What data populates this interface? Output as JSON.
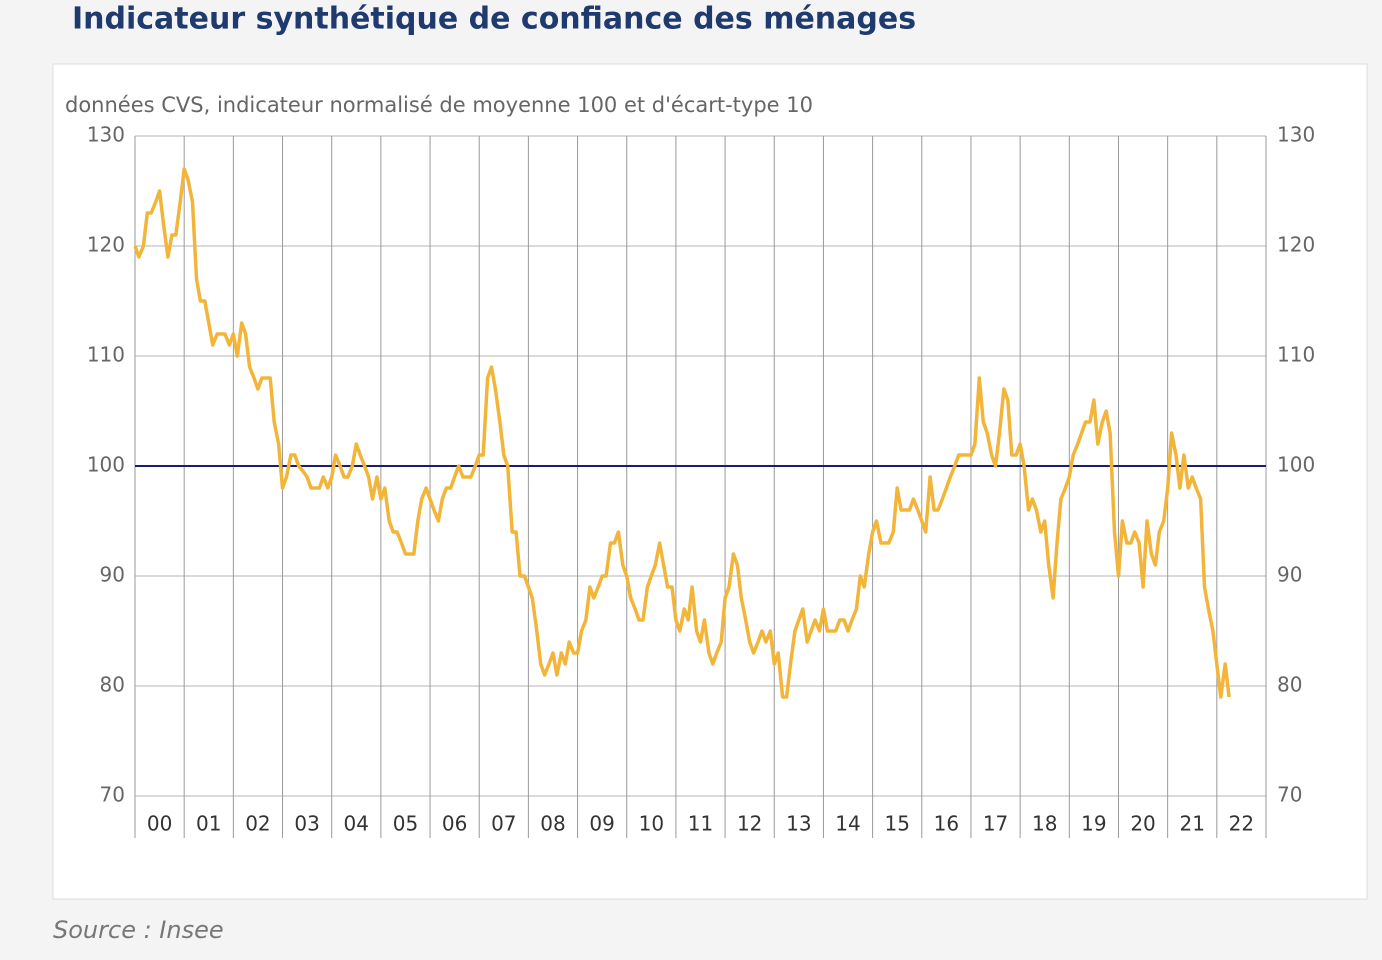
{
  "chart_data": {
    "type": "line",
    "title": "Indicateur synthétique de confiance des ménages",
    "subtitle": "données CVS, indicateur normalisé de moyenne 100 et d'écart-type 10",
    "source": "Source : Insee",
    "x": [
      2000,
      2000.08,
      2000.17,
      2000.25,
      2000.33,
      2000.42,
      2000.5,
      2000.58,
      2000.67,
      2000.75,
      2000.83,
      2000.92,
      2001,
      2001.08,
      2001.17,
      2001.25,
      2001.33,
      2001.42,
      2001.5,
      2001.58,
      2001.67,
      2001.75,
      2001.83,
      2001.92,
      2002,
      2002.08,
      2002.17,
      2002.25,
      2002.33,
      2002.42,
      2002.5,
      2002.58,
      2002.67,
      2002.75,
      2002.83,
      2002.92,
      2003,
      2003.08,
      2003.17,
      2003.25,
      2003.33,
      2003.42,
      2003.5,
      2003.58,
      2003.67,
      2003.75,
      2003.83,
      2003.92,
      2004,
      2004.08,
      2004.17,
      2004.25,
      2004.33,
      2004.42,
      2004.5,
      2004.58,
      2004.67,
      2004.75,
      2004.83,
      2004.92,
      2005,
      2005.08,
      2005.17,
      2005.25,
      2005.33,
      2005.42,
      2005.5,
      2005.58,
      2005.67,
      2005.75,
      2005.83,
      2005.92,
      2006,
      2006.08,
      2006.17,
      2006.25,
      2006.33,
      2006.42,
      2006.5,
      2006.58,
      2006.67,
      2006.75,
      2006.83,
      2006.92,
      2007,
      2007.08,
      2007.17,
      2007.25,
      2007.33,
      2007.42,
      2007.5,
      2007.58,
      2007.67,
      2007.75,
      2007.83,
      2007.92,
      2008,
      2008.08,
      2008.17,
      2008.25,
      2008.33,
      2008.42,
      2008.5,
      2008.58,
      2008.67,
      2008.75,
      2008.83,
      2008.92,
      2009,
      2009.08,
      2009.17,
      2009.25,
      2009.33,
      2009.42,
      2009.5,
      2009.58,
      2009.67,
      2009.75,
      2009.83,
      2009.92,
      2010,
      2010.08,
      2010.17,
      2010.25,
      2010.33,
      2010.42,
      2010.5,
      2010.58,
      2010.67,
      2010.75,
      2010.83,
      2010.92,
      2011,
      2011.08,
      2011.17,
      2011.25,
      2011.33,
      2011.42,
      2011.5,
      2011.58,
      2011.67,
      2011.75,
      2011.83,
      2011.92,
      2012,
      2012.08,
      2012.17,
      2012.25,
      2012.33,
      2012.42,
      2012.5,
      2012.58,
      2012.67,
      2012.75,
      2012.83,
      2012.92,
      2013,
      2013.08,
      2013.17,
      2013.25,
      2013.33,
      2013.42,
      2013.5,
      2013.58,
      2013.67,
      2013.75,
      2013.83,
      2013.92,
      2014,
      2014.08,
      2014.17,
      2014.25,
      2014.33,
      2014.42,
      2014.5,
      2014.58,
      2014.67,
      2014.75,
      2014.83,
      2014.92,
      2015,
      2015.08,
      2015.17,
      2015.25,
      2015.33,
      2015.42,
      2015.5,
      2015.58,
      2015.67,
      2015.75,
      2015.83,
      2015.92,
      2016,
      2016.08,
      2016.17,
      2016.25,
      2016.33,
      2016.42,
      2016.5,
      2016.58,
      2016.67,
      2016.75,
      2016.83,
      2016.92,
      2017,
      2017.08,
      2017.17,
      2017.25,
      2017.33,
      2017.42,
      2017.5,
      2017.58,
      2017.67,
      2017.75,
      2017.83,
      2017.92,
      2018,
      2018.08,
      2018.17,
      2018.25,
      2018.33,
      2018.42,
      2018.5,
      2018.58,
      2018.67,
      2018.75,
      2018.83,
      2018.92,
      2019,
      2019.08,
      2019.17,
      2019.25,
      2019.33,
      2019.42,
      2019.5,
      2019.58,
      2019.67,
      2019.75,
      2019.83,
      2019.92,
      2020,
      2020.08,
      2020.17,
      2020.25,
      2020.33,
      2020.42,
      2020.5,
      2020.58,
      2020.67,
      2020.75,
      2020.83,
      2020.92,
      2021,
      2021.08,
      2021.17,
      2021.25,
      2021.33,
      2021.42,
      2021.5,
      2021.58,
      2021.67,
      2021.75,
      2021.83,
      2021.92,
      2022,
      2022.08,
      2022.17,
      2022.25
    ],
    "series": [
      {
        "color": "#f2b53a",
        "values": [
          120,
          119,
          120,
          123,
          123,
          124,
          125,
          122,
          119,
          121,
          121,
          124,
          127,
          126,
          124,
          117,
          115,
          115,
          113,
          111,
          112,
          112,
          112,
          111,
          112,
          110,
          113,
          112,
          109,
          108,
          107,
          108,
          108,
          108,
          104,
          102,
          98,
          99,
          101,
          101,
          100,
          99.5,
          99,
          98,
          98,
          98,
          99,
          98,
          99,
          101,
          100,
          99,
          99,
          100,
          102,
          101,
          100,
          99,
          97,
          99,
          97,
          98,
          95,
          94,
          94,
          93,
          92,
          92,
          92,
          95,
          97,
          98,
          97,
          96,
          95,
          97,
          98,
          98,
          99,
          100,
          99,
          99,
          99,
          100,
          101,
          101,
          108,
          109,
          107,
          104,
          101,
          100,
          94,
          94,
          90,
          90,
          89,
          88,
          85,
          82,
          81,
          82,
          83,
          81,
          83,
          82,
          84,
          83,
          83,
          85,
          86,
          89,
          88,
          89,
          90,
          90,
          93,
          93,
          94,
          91,
          90,
          88,
          87,
          86,
          86,
          89,
          90,
          91,
          93,
          91,
          89,
          89,
          86,
          85,
          87,
          86,
          89,
          85,
          84,
          86,
          83,
          82,
          83,
          84,
          88,
          89,
          92,
          91,
          88,
          86,
          84,
          83,
          84,
          85,
          84,
          85,
          82,
          83,
          79,
          79,
          82,
          85,
          86,
          87,
          84,
          85,
          86,
          85,
          87,
          85,
          85,
          85,
          86,
          86,
          85,
          86,
          87,
          90,
          89,
          92,
          94,
          95,
          93,
          93,
          93,
          94,
          98,
          96,
          96,
          96,
          97,
          96,
          95,
          94,
          99,
          96,
          96,
          97,
          98,
          99,
          100,
          101,
          101,
          101,
          101,
          102,
          108,
          104,
          103,
          101,
          100,
          103,
          107,
          106,
          101,
          101,
          102,
          100,
          96,
          97,
          96,
          94,
          95,
          91,
          88,
          93,
          97,
          98,
          99,
          101,
          102,
          103,
          104,
          104,
          106,
          102,
          104,
          105,
          103,
          94,
          90,
          95,
          93,
          93,
          94,
          93,
          89,
          95,
          92,
          91,
          94,
          95,
          98,
          103,
          101,
          98,
          101,
          98,
          99,
          98,
          97,
          89,
          87,
          85,
          82,
          79,
          82,
          79
        ]
      }
    ],
    "hline": 100,
    "hline_color": "#1a1f6b",
    "xlim": [
      2000,
      2023
    ],
    "xticks": [
      {
        "value": 2000,
        "label": "00"
      },
      {
        "value": 2001,
        "label": "01"
      },
      {
        "value": 2002,
        "label": "02"
      },
      {
        "value": 2003,
        "label": "03"
      },
      {
        "value": 2004,
        "label": "04"
      },
      {
        "value": 2005,
        "label": "05"
      },
      {
        "value": 2006,
        "label": "06"
      },
      {
        "value": 2007,
        "label": "07"
      },
      {
        "value": 2008,
        "label": "08"
      },
      {
        "value": 2009,
        "label": "09"
      },
      {
        "value": 2010,
        "label": "10"
      },
      {
        "value": 2011,
        "label": "11"
      },
      {
        "value": 2012,
        "label": "12"
      },
      {
        "value": 2013,
        "label": "13"
      },
      {
        "value": 2014,
        "label": "14"
      },
      {
        "value": 2015,
        "label": "15"
      },
      {
        "value": 2016,
        "label": "16"
      },
      {
        "value": 2017,
        "label": "17"
      },
      {
        "value": 2018,
        "label": "18"
      },
      {
        "value": 2019,
        "label": "19"
      },
      {
        "value": 2020,
        "label": "20"
      },
      {
        "value": 2021,
        "label": "21"
      },
      {
        "value": 2022,
        "label": "22"
      }
    ],
    "ylim": [
      70,
      130
    ],
    "yticks": [
      70,
      80,
      90,
      100,
      110,
      120,
      130
    ],
    "y2lim": [
      70,
      130
    ],
    "y2ticks": [
      70,
      80,
      90,
      100,
      110,
      120,
      130
    ],
    "grid": true
  }
}
